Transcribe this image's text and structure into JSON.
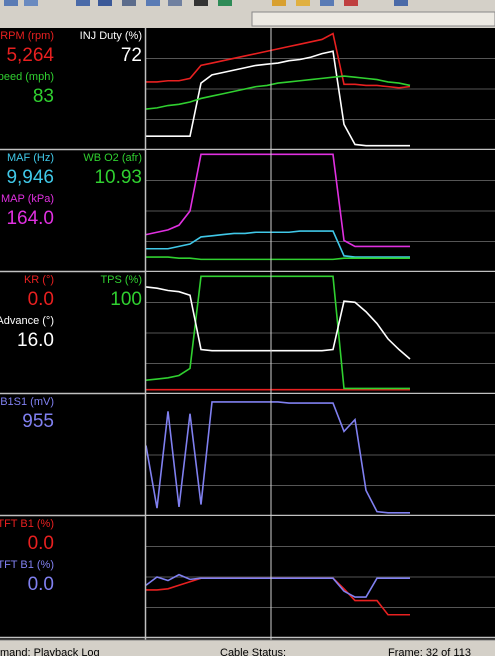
{
  "panels": [
    {
      "signals": [
        {
          "label": "RPM (rpm)",
          "value": "5,264",
          "color": "#e82020",
          "trace": [
            56,
            56,
            57,
            57,
            59,
            70,
            72,
            74,
            76,
            78,
            80,
            82,
            84,
            86,
            88,
            90,
            92,
            97,
            54,
            54,
            53,
            53,
            52,
            51,
            52
          ]
        },
        {
          "label": "INJ Duty (%)",
          "value": "72",
          "color": "#ffffff",
          "trace": [
            10,
            10,
            10,
            10,
            10,
            55,
            62,
            64,
            66,
            68,
            70,
            71,
            72,
            74,
            75,
            77,
            80,
            82,
            20,
            3,
            2,
            2,
            2,
            2,
            2
          ]
        },
        {
          "label": "peed (mph)",
          "value": "83",
          "color": "#30d030",
          "trace": [
            33,
            34,
            36,
            37,
            39,
            42,
            44,
            46,
            48,
            50,
            52,
            53,
            55,
            56,
            57,
            58,
            59,
            60,
            61,
            60,
            59,
            58,
            56,
            55,
            53
          ]
        }
      ]
    },
    {
      "signals": [
        {
          "label": "MAF (Hz)",
          "value": "9,946",
          "color": "#40c8e8",
          "trace": [
            18,
            18,
            18,
            20,
            22,
            28,
            29,
            30,
            31,
            31,
            32,
            32,
            32,
            32,
            33,
            33,
            33,
            33,
            12,
            11,
            11,
            11,
            11,
            11,
            11
          ]
        },
        {
          "label": "WB O2 (afr)",
          "value": "10.93",
          "color": "#30d030",
          "trace": [
            11,
            11,
            11,
            10,
            10,
            9,
            9,
            9,
            9,
            9,
            9,
            9,
            9,
            9,
            9,
            9,
            9,
            9,
            10,
            10,
            10,
            10,
            10,
            10,
            10
          ]
        },
        {
          "label": "MAP (kPa)",
          "value": "164.0",
          "color": "#e030e0",
          "trace": [
            30,
            32,
            34,
            38,
            50,
            98,
            98,
            98,
            98,
            98,
            98,
            98,
            98,
            98,
            98,
            98,
            98,
            98,
            25,
            20,
            20,
            20,
            20,
            20,
            20
          ]
        }
      ]
    },
    {
      "signals": [
        {
          "label": "KR (°)",
          "value": "0.0",
          "color": "#e82020",
          "trace": [
            2,
            2,
            2,
            2,
            2,
            2,
            2,
            2,
            2,
            2,
            2,
            2,
            2,
            2,
            2,
            2,
            2,
            2,
            2,
            2,
            2,
            2,
            2,
            2,
            2
          ]
        },
        {
          "label": "TPS (%)",
          "value": "100",
          "color": "#30d030",
          "trace": [
            10,
            11,
            12,
            14,
            20,
            98,
            98,
            98,
            98,
            98,
            98,
            98,
            98,
            98,
            98,
            98,
            98,
            98,
            3,
            3,
            3,
            3,
            3,
            3,
            3
          ]
        },
        {
          "label": "Advance (°)",
          "value": "16.0",
          "color": "#ffffff",
          "trace": [
            89,
            88,
            86,
            85,
            82,
            36,
            35,
            35,
            35,
            35,
            35,
            35,
            35,
            35,
            35,
            35,
            35,
            36,
            77,
            76,
            68,
            58,
            45,
            36,
            28
          ]
        }
      ]
    },
    {
      "signals": [
        {
          "label": "B1S1 (mV)",
          "value": "955",
          "color": "#8080f0",
          "trace": [
            58,
            5,
            87,
            6,
            85,
            8,
            95,
            95,
            95,
            95,
            95,
            95,
            95,
            94,
            94,
            94,
            94,
            94,
            70,
            80,
            20,
            2,
            1,
            1,
            1
          ]
        }
      ]
    },
    {
      "signals": [
        {
          "label": "TFT B1 (%)",
          "value": "0.0",
          "color": "#e82020",
          "trace": [
            39,
            39,
            40,
            43,
            46,
            49,
            49,
            49,
            49,
            49,
            49,
            49,
            49,
            49,
            49,
            49,
            49,
            49,
            40,
            30,
            30,
            30,
            18,
            18,
            18
          ]
        },
        {
          "label": "TFT B1 (%)",
          "value": "0.0",
          "color": "#8080f0",
          "trace": [
            43,
            50,
            47,
            52,
            48,
            49,
            49,
            49,
            49,
            49,
            49,
            49,
            49,
            49,
            49,
            49,
            49,
            49,
            38,
            33,
            33,
            49,
            49,
            49,
            49
          ]
        }
      ]
    }
  ],
  "status": [
    "mand: Playback Log",
    "Cable Status:",
    "Frame: 32 of 113"
  ]
}
